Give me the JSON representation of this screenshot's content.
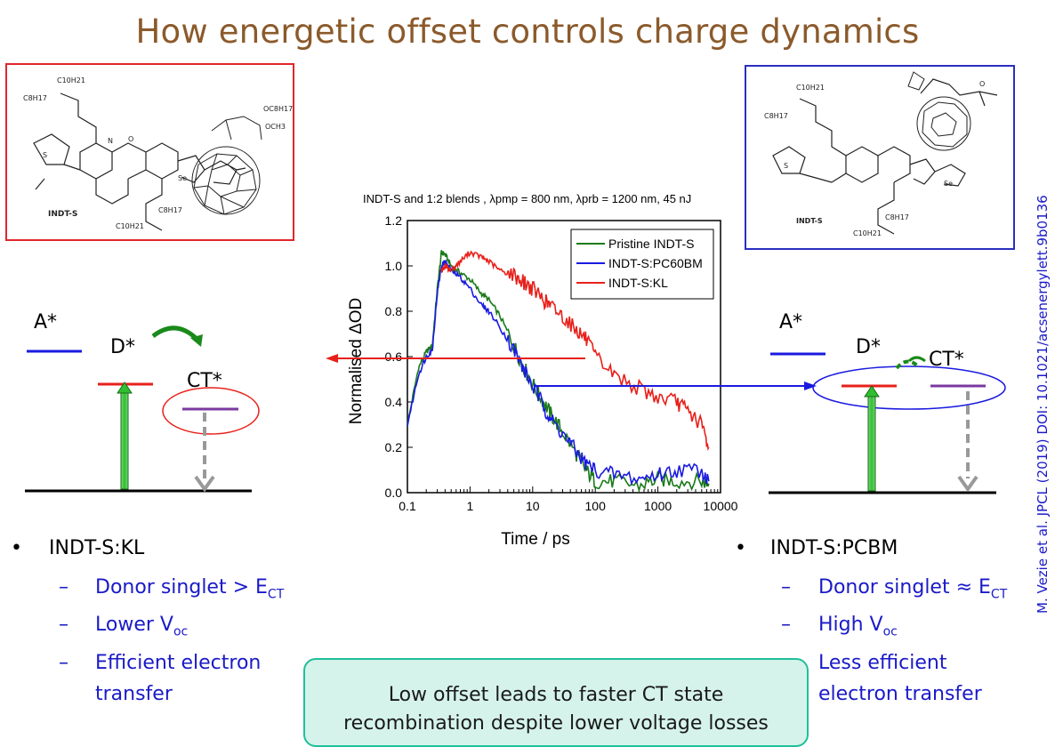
{
  "title": "How energetic offset controls charge dynamics",
  "molecules": {
    "left": {
      "name": "INDT-S",
      "atoms": [
        "C10H21",
        "C8H17",
        "N",
        "O",
        "S",
        "Se",
        "OC8H17",
        "OCH3",
        "C8H17",
        "C10H21"
      ]
    },
    "right": {
      "name": "INDT-S",
      "atoms": [
        "C10H21",
        "C8H17",
        "O",
        "S",
        "Se",
        "C8H17",
        "C10H21"
      ]
    }
  },
  "left_diagram": {
    "a_label": "A*",
    "d_label": "D*",
    "ct_label": "CT*"
  },
  "right_diagram": {
    "a_label": "A*",
    "d_label": "D*",
    "ct_label": "CT*"
  },
  "left_bullets": {
    "heading": "INDT-S:KL",
    "item1": "Donor singlet > E",
    "item1_sub": "CT",
    "item2": "Lower V",
    "item2_sub": "oc",
    "item3_line1": "Efficient electron",
    "item3_line2": "transfer"
  },
  "right_bullets": {
    "heading": "INDT-S:PCBM",
    "item1": "Donor singlet ≈ E",
    "item1_sub": "CT",
    "item2": "High V",
    "item2_sub": "oc",
    "item3_line1": "Less efficient",
    "item3_line2": "electron transfer"
  },
  "callout": {
    "line1": "Low offset leads to faster CT state",
    "line2": "recombination despite lower voltage losses"
  },
  "citation": "M. Vezie et al.  JPCL (2019) DOI: 10.1021/acsenergylett.9b0136",
  "bullet_char": "•",
  "dash_char": "–",
  "colors": {
    "title": "#8b5a2b",
    "pristine": "#1a7a1a",
    "pc60bm": "#1a1ae0",
    "kl": "#e8201a",
    "accent_blue": "#1a1ac8"
  },
  "chart_data": {
    "type": "line",
    "title": "INDT-S and 1:2 blends , λpmp = 800 nm, λprb = 1200 nm, 45 nJ",
    "xlabel": "Time / ps",
    "ylabel": "Normalised ΔOD",
    "xscale": "log",
    "xlim": [
      0.1,
      10000
    ],
    "ylim": [
      0.0,
      1.2
    ],
    "xticks": [
      "0.1",
      "1",
      "10",
      "100",
      "1000",
      "10000"
    ],
    "yticks": [
      "0.0",
      "0.2",
      "0.4",
      "0.6",
      "0.8",
      "1.0",
      "1.2"
    ],
    "legend_position": "top-right",
    "series": [
      {
        "name": "Pristine INDT-S",
        "color": "#1a7a1a",
        "x": [
          0.1,
          0.15,
          0.2,
          0.25,
          0.3,
          0.35,
          0.4,
          0.5,
          0.7,
          1,
          1.5,
          2,
          3,
          5,
          7,
          10,
          15,
          20,
          30,
          50,
          70,
          100,
          200,
          500,
          1000,
          2000,
          5000,
          6500
        ],
        "y": [
          0.3,
          0.55,
          0.62,
          0.65,
          0.9,
          1.06,
          1.05,
          1.0,
          0.97,
          0.94,
          0.88,
          0.85,
          0.78,
          0.65,
          0.56,
          0.48,
          0.4,
          0.34,
          0.27,
          0.17,
          0.1,
          0.05,
          0.05,
          0.03,
          0.06,
          0.05,
          0.05,
          0.04
        ]
      },
      {
        "name": "INDT-S:PC60BM",
        "color": "#1a1ae0",
        "x": [
          0.1,
          0.15,
          0.2,
          0.25,
          0.3,
          0.35,
          0.4,
          0.5,
          0.7,
          1,
          1.5,
          2,
          3,
          5,
          7,
          10,
          15,
          20,
          30,
          50,
          70,
          100,
          200,
          500,
          1000,
          2000,
          5000,
          6500
        ],
        "y": [
          0.3,
          0.52,
          0.6,
          0.63,
          0.88,
          1.0,
          1.02,
          0.98,
          0.95,
          0.9,
          0.83,
          0.8,
          0.73,
          0.63,
          0.55,
          0.47,
          0.38,
          0.32,
          0.26,
          0.18,
          0.13,
          0.1,
          0.08,
          0.06,
          0.08,
          0.1,
          0.1,
          0.05
        ]
      },
      {
        "name": "INDT-S:KL",
        "color": "#e8201a",
        "x": [
          0.35,
          0.4,
          0.5,
          0.7,
          1,
          1.5,
          2,
          3,
          5,
          7,
          10,
          15,
          20,
          30,
          50,
          70,
          100,
          200,
          500,
          1000,
          2000,
          3000,
          5000,
          6500
        ],
        "y": [
          0.98,
          1.0,
          0.98,
          1.02,
          1.06,
          1.04,
          1.02,
          0.98,
          0.96,
          0.93,
          0.9,
          0.85,
          0.82,
          0.78,
          0.72,
          0.68,
          0.6,
          0.52,
          0.46,
          0.42,
          0.4,
          0.36,
          0.3,
          0.2
        ]
      }
    ]
  }
}
